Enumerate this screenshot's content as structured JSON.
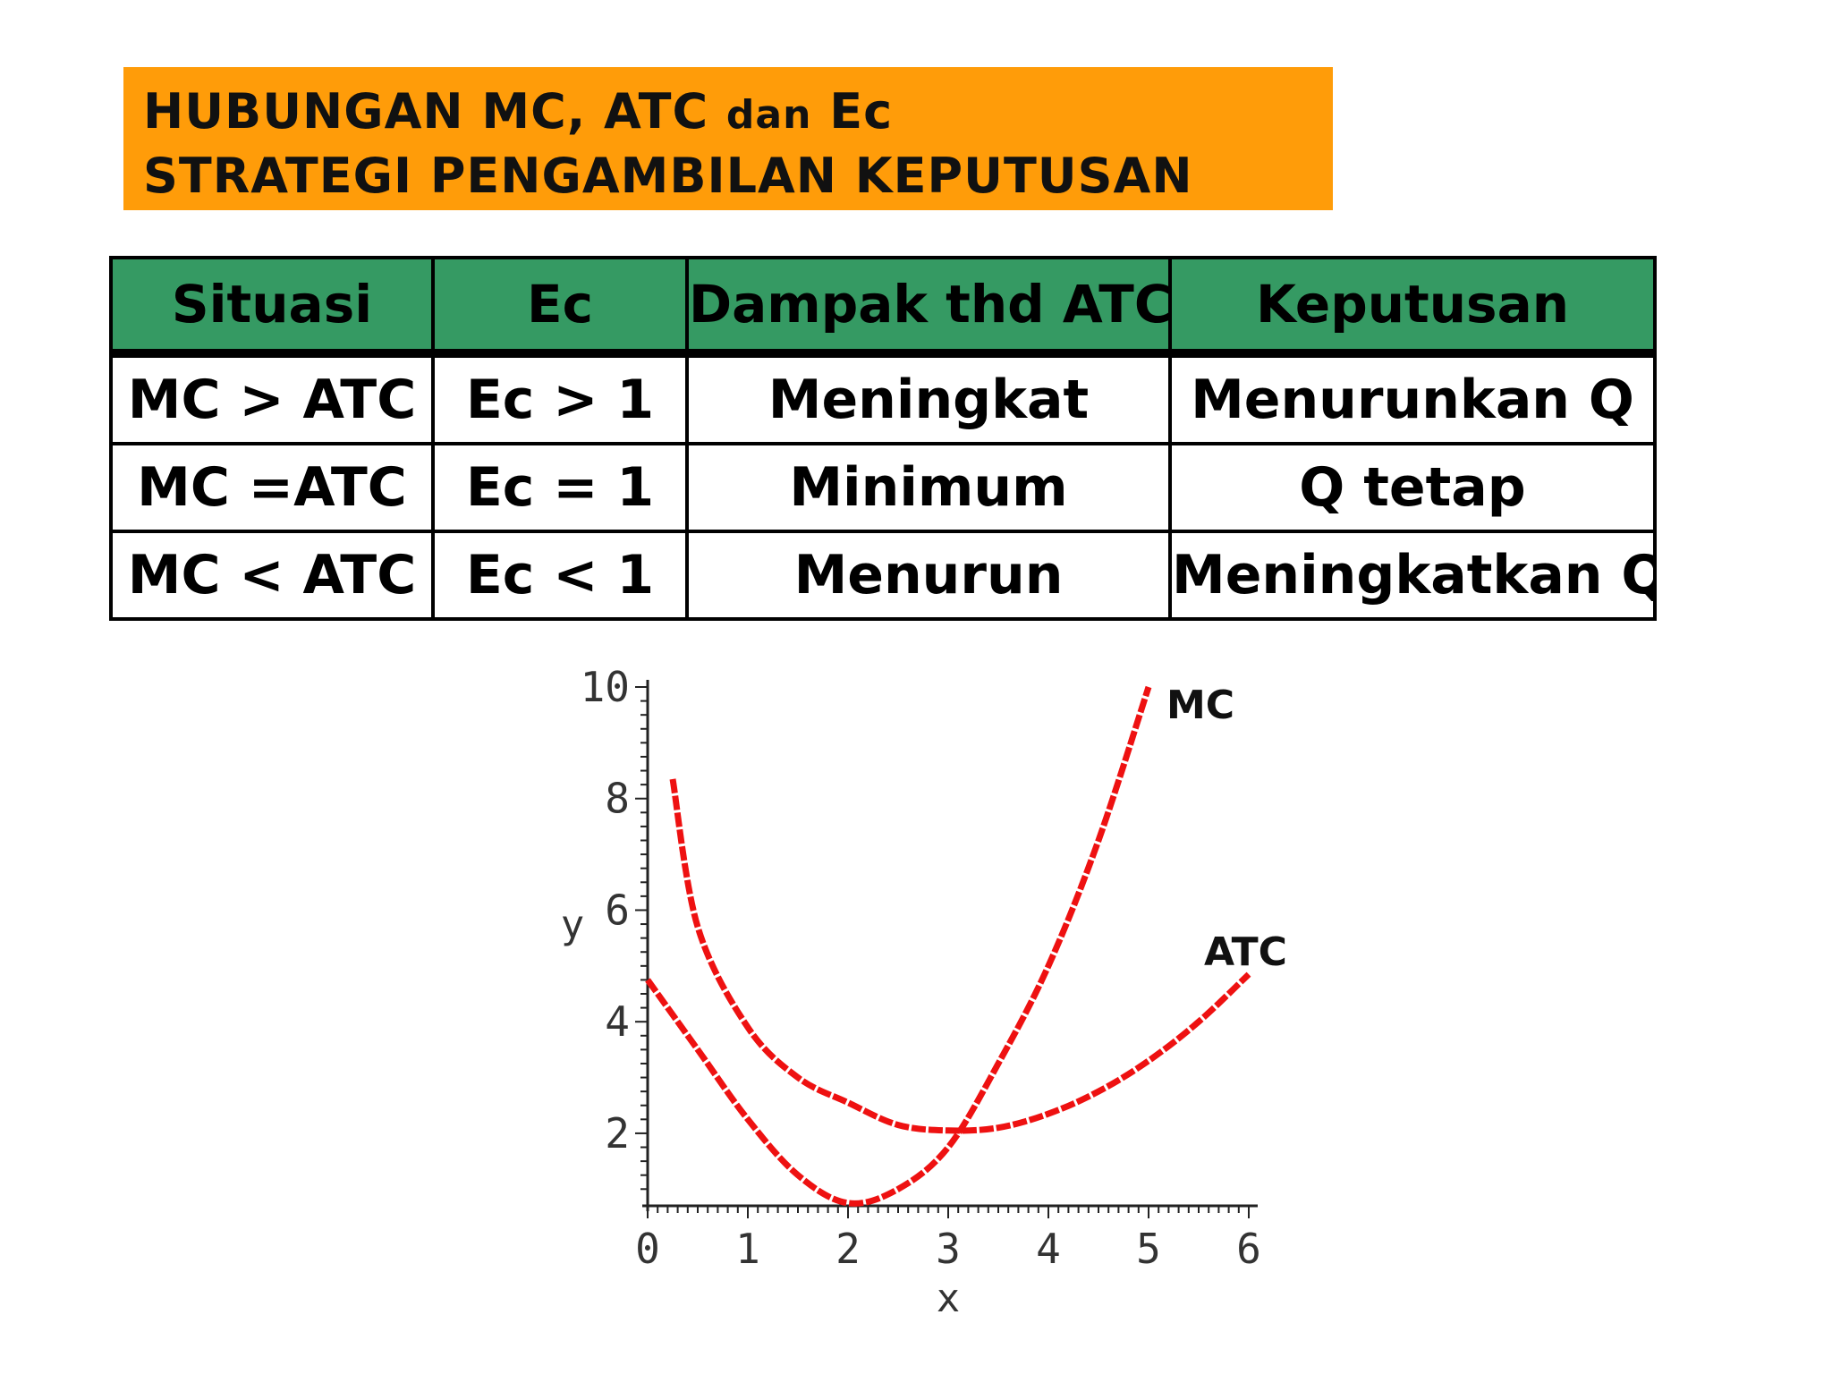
{
  "title": {
    "line1_main": "HUBUNGAN  MC, ATC ",
    "line1_small": "dan",
    "line1_end": " Ec",
    "line2": "STRATEGI PENGAMBILAN  KEPUTUSAN"
  },
  "table": {
    "headers": [
      "Situasi",
      "Ec",
      "Dampak thd ATC",
      "Keputusan"
    ],
    "rows": [
      [
        "MC > ATC",
        "Ec > 1",
        "Meningkat",
        "Menurunkan Q"
      ],
      [
        "MC =ATC",
        "Ec = 1",
        "Minimum",
        "Q tetap"
      ],
      [
        "MC < ATC",
        "Ec < 1",
        "Menurun",
        "Meningkatkan Q"
      ]
    ]
  },
  "chart_data": {
    "type": "line",
    "xlabel": "x",
    "ylabel": "y",
    "xlim": [
      0,
      6
    ],
    "ylim": [
      0.7,
      10
    ],
    "xticks": [
      0,
      1,
      2,
      3,
      4,
      5,
      6
    ],
    "yticks": [
      2,
      4,
      6,
      8,
      10
    ],
    "series": [
      {
        "name": "MC",
        "color": "#ee1111",
        "x": [
          0,
          0.5,
          1,
          1.5,
          2,
          2.5,
          3,
          3.5,
          4,
          4.5,
          5
        ],
        "y": [
          4.75,
          3.5,
          2.25,
          1.25,
          0.75,
          1.0,
          1.75,
          3.25,
          5.0,
          7.25,
          10.0
        ]
      },
      {
        "name": "ATC",
        "color": "#ee1111",
        "x": [
          0.25,
          0.5,
          1,
          1.5,
          2,
          2.5,
          3,
          3.5,
          4,
          4.5,
          5,
          5.5,
          6
        ],
        "y": [
          8.35,
          5.7,
          3.9,
          3.0,
          2.55,
          2.15,
          2.05,
          2.1,
          2.35,
          2.75,
          3.3,
          4.0,
          4.85
        ]
      }
    ]
  }
}
